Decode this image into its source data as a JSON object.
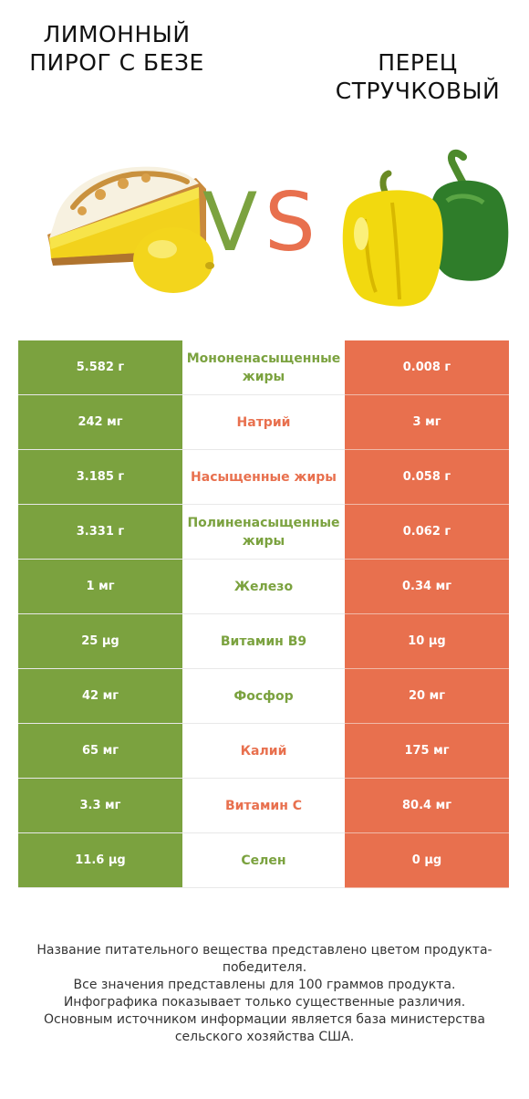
{
  "header": {
    "left_title": "ЛИМОННЫЙ ПИРОГ С БЕЗЕ",
    "right_title": "ПЕРЕЦ СТРУЧКОВЫЙ",
    "vs_v": "V",
    "vs_s": "S"
  },
  "colors": {
    "left_product": "#7ba23f",
    "right_product": "#e8704e"
  },
  "rows": [
    {
      "left": "5.582 г",
      "nutrient": "Мононенасыщенные жиры",
      "right": "0.008 г",
      "winner": "left"
    },
    {
      "left": "242 мг",
      "nutrient": "Натрий",
      "right": "3 мг",
      "winner": "right"
    },
    {
      "left": "3.185 г",
      "nutrient": "Насыщенные жиры",
      "right": "0.058 г",
      "winner": "right"
    },
    {
      "left": "3.331 г",
      "nutrient": "Полиненасыщенные жиры",
      "right": "0.062 г",
      "winner": "left"
    },
    {
      "left": "1 мг",
      "nutrient": "Железо",
      "right": "0.34 мг",
      "winner": "left"
    },
    {
      "left": "25 µg",
      "nutrient": "Витамин B9",
      "right": "10 µg",
      "winner": "left"
    },
    {
      "left": "42 мг",
      "nutrient": "Фосфор",
      "right": "20 мг",
      "winner": "left"
    },
    {
      "left": "65 мг",
      "nutrient": "Калий",
      "right": "175 мг",
      "winner": "right"
    },
    {
      "left": "3.3 мг",
      "nutrient": "Витамин C",
      "right": "80.4 мг",
      "winner": "right"
    },
    {
      "left": "11.6 µg",
      "nutrient": "Селен",
      "right": "0 µg",
      "winner": "left"
    }
  ],
  "footnote": {
    "line1": "Название питательного вещества представлено цветом продукта-победителя.",
    "line2": "Все значения представлены для 100 граммов продукта.",
    "line3": "Инфографика показывает только существенные различия.",
    "line4": "Основным источником информации является база министерства сельского хозяйства США."
  }
}
